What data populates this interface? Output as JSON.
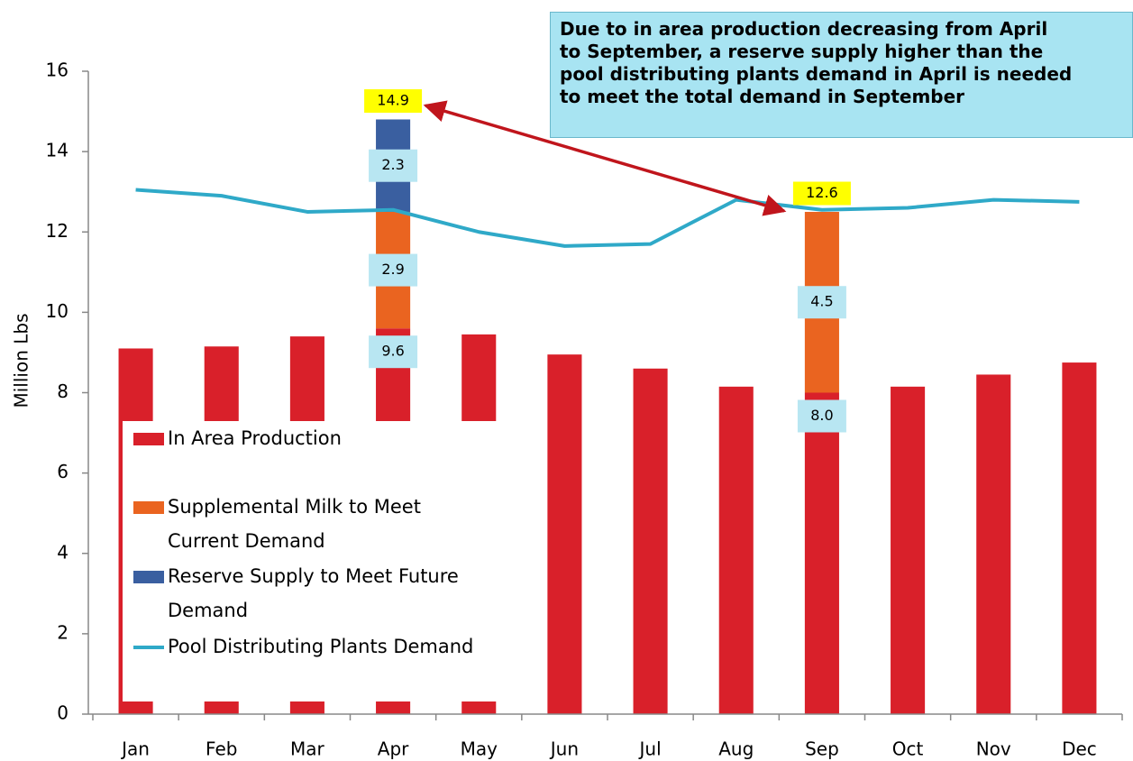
{
  "chart_data": {
    "type": "bar",
    "stacked": true,
    "y_label": "Million Lbs",
    "categories": [
      "Jan",
      "Feb",
      "Mar",
      "Apr",
      "May",
      "Jun",
      "Jul",
      "Aug",
      "Sep",
      "Oct",
      "Nov",
      "Dec"
    ],
    "series": [
      {
        "name": "In Area Production",
        "type": "bar",
        "color": "#d9202a",
        "values": [
          9.1,
          9.15,
          9.4,
          9.6,
          9.45,
          8.95,
          8.6,
          8.15,
          8.0,
          8.15,
          8.45,
          8.75
        ],
        "value_labels": [
          null,
          null,
          null,
          "9.6",
          null,
          null,
          null,
          null,
          "8.0",
          null,
          null,
          null
        ]
      },
      {
        "name": "Supplemental Milk to Meet Current Demand",
        "type": "bar",
        "color": "#ea6420",
        "values": [
          null,
          null,
          null,
          2.9,
          null,
          null,
          null,
          null,
          4.5,
          null,
          null,
          null
        ],
        "value_labels": [
          null,
          null,
          null,
          "2.9",
          null,
          null,
          null,
          null,
          "4.5",
          null,
          null,
          null
        ]
      },
      {
        "name": "Reserve Supply to Meet Future Demand",
        "type": "bar",
        "color": "#3a5fa0",
        "values": [
          null,
          null,
          null,
          2.3,
          null,
          null,
          null,
          null,
          null,
          null,
          null,
          null
        ],
        "value_labels": [
          null,
          null,
          null,
          "2.3",
          null,
          null,
          null,
          null,
          null,
          null,
          null,
          null
        ]
      },
      {
        "name": "Pool Distributing Plants Demand",
        "type": "line",
        "color": "#2fa9c8",
        "values": [
          13.05,
          12.9,
          12.5,
          12.55,
          12.0,
          11.65,
          11.7,
          12.8,
          12.55,
          12.6,
          12.8,
          12.75
        ]
      }
    ],
    "total_labels": [
      {
        "category": "Apr",
        "value": 14.9
      },
      {
        "category": "Sep",
        "value": 12.6
      }
    ],
    "annotation": [
      "Due to in area production decreasing from April",
      "to September, a reserve supply higher than the",
      "pool distributing plants demand in April is needed",
      "to meet the total demand in September"
    ],
    "ylim": [
      0,
      16
    ],
    "yticks": [
      0,
      2,
      4,
      6,
      8,
      10,
      12,
      14,
      16
    ],
    "grid": false
  }
}
